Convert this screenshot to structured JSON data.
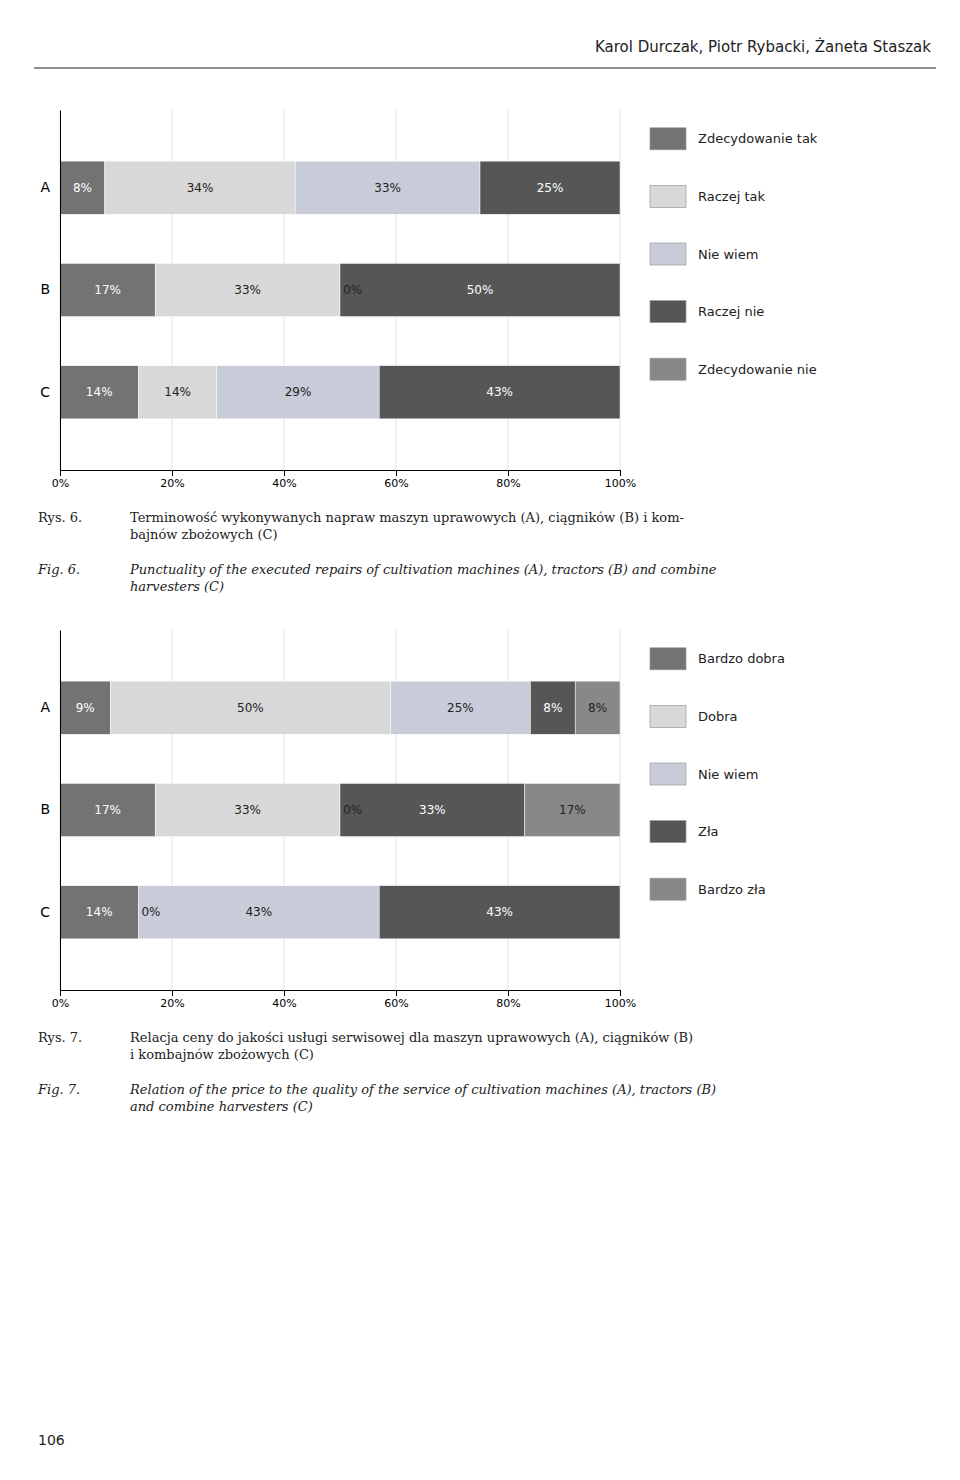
{
  "title": "Karol Durczak, Piotr Rybacki, Żaneta Staszak",
  "annotations": [
    "106"
  ],
  "chart_data": [
    {
      "type": "bar",
      "orientation": "horizontal",
      "stacked": true,
      "data_labels": true,
      "grid": true,
      "legend": "right",
      "categories": [
        "C",
        "B",
        "A"
      ],
      "series": [
        {
          "name": "Zdecydowanie tak",
          "color": "#737373",
          "values": [
            14,
            17,
            8
          ],
          "value_labels": [
            "14%",
            "17%",
            "8%"
          ]
        },
        {
          "name": "Raczej tak",
          "color": "#d8d8d8",
          "values": [
            14,
            33,
            34
          ],
          "value_labels": [
            "14%",
            "33%",
            "34%"
          ]
        },
        {
          "name": "Nie wiem",
          "color": "#c8ccd8",
          "values": [
            29,
            0,
            33
          ],
          "value_labels": [
            "29%",
            "0%",
            "33%"
          ]
        },
        {
          "name": "Raczej nie",
          "color": "#565656",
          "values": [
            43,
            50,
            25
          ],
          "value_labels": [
            "43%",
            "50%",
            "25%"
          ]
        },
        {
          "name": "Zdecydowanie nie",
          "color": "#888888",
          "values": [
            0,
            0,
            0
          ],
          "value_labels": [
            null,
            null,
            null
          ]
        }
      ],
      "xlim": [
        0,
        100
      ],
      "xticks": [
        {
          "value": 0,
          "label": "0%"
        },
        {
          "value": 20,
          "label": "20%"
        },
        {
          "value": 40,
          "label": "40%"
        },
        {
          "value": 60,
          "label": "60%"
        },
        {
          "value": 80,
          "label": "80%"
        },
        {
          "value": 100,
          "label": "100%"
        }
      ],
      "annotations": [
        "Rys. 6.",
        "Terminowość wykonywanych napraw maszyn uprawowych (A), ciągników (B) i kom-\nbajnów zbożowych (C)",
        "Fig. 6.",
        "Punctuality of the executed repairs of cultivation machines (A), tractors (B) and combine\nharvesters (C)"
      ]
    },
    {
      "type": "bar",
      "orientation": "horizontal",
      "stacked": true,
      "data_labels": true,
      "grid": true,
      "legend": "right",
      "categories": [
        "C",
        "B",
        "A"
      ],
      "series": [
        {
          "name": "Bardzo dobra",
          "color": "#737373",
          "values": [
            14,
            17,
            9
          ],
          "value_labels": [
            "14%",
            "17%",
            "9%"
          ]
        },
        {
          "name": "Dobra",
          "color": "#d8d8d8",
          "values": [
            0,
            33,
            50
          ],
          "value_labels": [
            "0%",
            "33%",
            "50%"
          ]
        },
        {
          "name": "Nie wiem",
          "color": "#c8ccd8",
          "values": [
            43,
            0,
            25
          ],
          "value_labels": [
            "43%",
            "0%",
            "25%"
          ]
        },
        {
          "name": "Zła",
          "color": "#565656",
          "values": [
            43,
            33,
            8
          ],
          "value_labels": [
            "43%",
            "33%",
            "8%"
          ]
        },
        {
          "name": "Bardzo zła",
          "color": "#888888",
          "values": [
            0,
            17,
            8
          ],
          "value_labels": [
            null,
            "17%",
            "8%"
          ]
        }
      ],
      "xlim": [
        0,
        100
      ],
      "xticks": [
        {
          "value": 0,
          "label": "0%"
        },
        {
          "value": 20,
          "label": "20%"
        },
        {
          "value": 40,
          "label": "40%"
        },
        {
          "value": 60,
          "label": "60%"
        },
        {
          "value": 80,
          "label": "80%"
        },
        {
          "value": 100,
          "label": "100%"
        }
      ],
      "annotations": [
        "Rys. 7.",
        "Relacja ceny do jakości usługi serwisowej dla maszyn uprawowych (A), ciągników (B)\ni kombajnów zbożowych (C)",
        "Fig. 7.",
        "Relation of the price to the quality of the service of cultivation machines (A), tractors (B)\nand combine harvesters (C)"
      ]
    }
  ]
}
